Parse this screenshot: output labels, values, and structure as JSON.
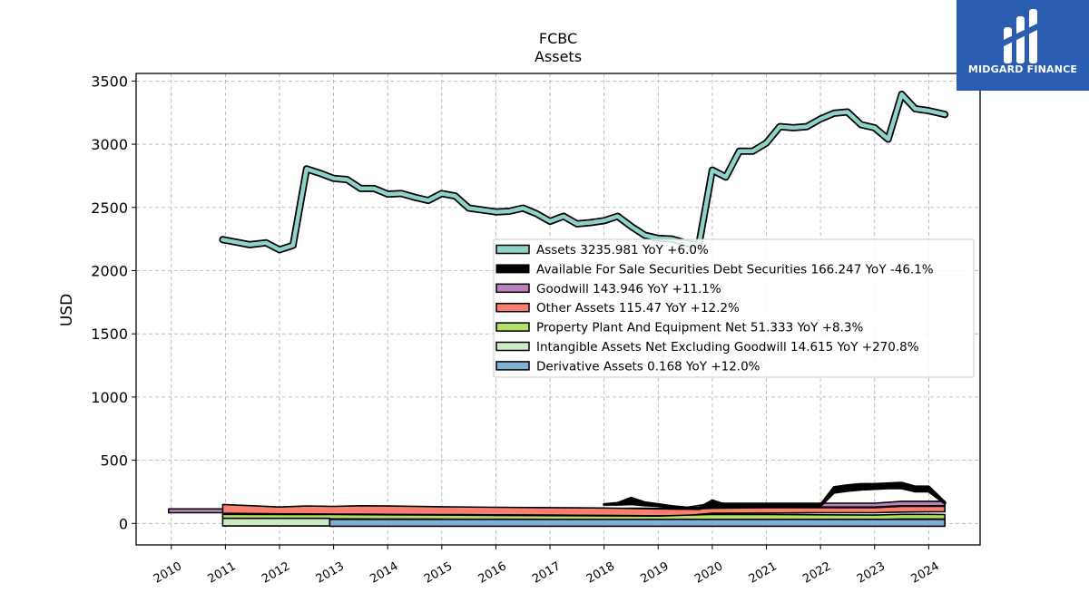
{
  "logo": {
    "text": "MIDGARD FINANCE"
  },
  "chart_data": {
    "type": "line",
    "title": "FCBC",
    "subtitle": "Assets",
    "ylabel": "USD",
    "xlabel": "",
    "ylim": [
      -170,
      3560
    ],
    "xlim": [
      2009.35,
      2024.95
    ],
    "yticks": [
      0,
      500,
      1000,
      1500,
      2000,
      2500,
      3000,
      3500
    ],
    "xticks": [
      "2010",
      "2011",
      "2012",
      "2013",
      "2014",
      "2015",
      "2016",
      "2017",
      "2018",
      "2019",
      "2020",
      "2021",
      "2022",
      "2023",
      "2024"
    ],
    "grid": true,
    "legend_position": "center-right",
    "series": [
      {
        "name": "Assets",
        "legend_label": "Assets  3235.981 YoY +6.0%",
        "color": "#8dd3c7",
        "style": "line",
        "x": [
          2010.95,
          2011.2,
          2011.45,
          2011.75,
          2012.0,
          2012.25,
          2012.5,
          2012.75,
          2013.0,
          2013.25,
          2013.5,
          2013.75,
          2014.0,
          2014.25,
          2014.5,
          2014.75,
          2015.0,
          2015.25,
          2015.5,
          2015.75,
          2016.0,
          2016.25,
          2016.5,
          2016.75,
          2017.0,
          2017.25,
          2017.5,
          2017.75,
          2018.0,
          2018.25,
          2018.5,
          2018.75,
          2019.0,
          2019.25,
          2019.5,
          2019.75,
          2020.0,
          2020.25,
          2020.5,
          2020.75,
          2021.0,
          2021.25,
          2021.5,
          2021.75,
          2022.0,
          2022.25,
          2022.5,
          2022.75,
          2023.0,
          2023.25,
          2023.5,
          2023.75,
          2024.0,
          2024.3
        ],
        "values": [
          2245,
          2225,
          2205,
          2220,
          2165,
          2200,
          2805,
          2770,
          2730,
          2720,
          2650,
          2650,
          2605,
          2610,
          2580,
          2555,
          2610,
          2590,
          2495,
          2480,
          2465,
          2470,
          2495,
          2450,
          2390,
          2430,
          2370,
          2380,
          2395,
          2430,
          2350,
          2280,
          2255,
          2250,
          2220,
          2200,
          2795,
          2740,
          2945,
          2945,
          3010,
          3140,
          3130,
          3140,
          3200,
          3245,
          3255,
          3155,
          3130,
          3040,
          3395,
          3280,
          3265,
          3236
        ]
      },
      {
        "name": "Available For Sale Securities Debt Securities",
        "legend_label": "Available For Sale Securities Debt Securities  166.247 YoY -46.1%",
        "color": "#000000",
        "style": "band",
        "x": [
          2018.0,
          2018.25,
          2018.5,
          2018.75,
          2019.0,
          2019.25,
          2019.5,
          2019.75,
          2020.0,
          2020.25,
          2020.5,
          2020.75,
          2021.0,
          2021.25,
          2021.5,
          2021.75,
          2022.0,
          2022.25,
          2022.5,
          2022.75,
          2023.0,
          2023.25,
          2023.5,
          2023.75,
          2024.0,
          2024.3
        ],
        "values": [
          150,
          160,
          200,
          165,
          150,
          135,
          125,
          120,
          180,
          145,
          145,
          145,
          145,
          145,
          145,
          145,
          145,
          285,
          300,
          310,
          310,
          315,
          320,
          290,
          290,
          166
        ],
        "lower": [
          150,
          150,
          155,
          145,
          140,
          130,
          120,
          115,
          145,
          140,
          140,
          140,
          140,
          140,
          140,
          140,
          140,
          245,
          260,
          270,
          275,
          280,
          280,
          255,
          255,
          160
        ]
      },
      {
        "name": "Goodwill",
        "legend_label": "Goodwill  143.946 YoY +11.1%",
        "color": "#bc80bd",
        "style": "band",
        "x": [
          2009.95,
          2011.0,
          2012.0,
          2013.0,
          2014.0,
          2015.0,
          2016.0,
          2017.0,
          2018.0,
          2018.5,
          2019.0,
          2019.5,
          2020.0,
          2021.0,
          2022.0,
          2023.0,
          2023.5,
          2024.0,
          2024.3
        ],
        "values": [
          115,
          115,
          115,
          115,
          115,
          115,
          115,
          115,
          115,
          120,
          120,
          125,
          160,
          160,
          160,
          160,
          175,
          175,
          175
        ],
        "lower": [
          85,
          85,
          85,
          85,
          85,
          85,
          85,
          85,
          85,
          90,
          90,
          95,
          130,
          130,
          130,
          130,
          140,
          140,
          140
        ]
      },
      {
        "name": "Other Assets",
        "legend_label": "Other Assets  115.47 YoY +12.2%",
        "color": "#fb8072",
        "style": "band",
        "x": [
          2010.95,
          2011.5,
          2012.0,
          2012.5,
          2013.0,
          2013.5,
          2014.0,
          2015.0,
          2016.0,
          2017.0,
          2018.0,
          2018.5,
          2019.0,
          2019.5,
          2020.0,
          2021.0,
          2022.0,
          2023.0,
          2023.5,
          2024.0,
          2024.3
        ],
        "values": [
          150,
          140,
          130,
          138,
          135,
          140,
          138,
          132,
          128,
          125,
          122,
          118,
          115,
          112,
          120,
          125,
          125,
          125,
          135,
          135,
          135
        ],
        "lower": [
          80,
          78,
          76,
          75,
          74,
          73,
          72,
          70,
          68,
          66,
          64,
          62,
          60,
          62,
          80,
          82,
          85,
          85,
          90,
          92,
          92
        ]
      },
      {
        "name": "Property Plant And Equipment Net",
        "legend_label": "Property Plant And Equipment Net  51.333 YoY +8.3%",
        "color": "#b3de69",
        "style": "band",
        "x": [
          2010.95,
          2012.0,
          2013.0,
          2014.0,
          2015.0,
          2016.0,
          2017.0,
          2018.0,
          2019.0,
          2020.0,
          2021.0,
          2022.0,
          2023.0,
          2023.5,
          2024.0,
          2024.3
        ],
        "values": [
          72,
          70,
          70,
          68,
          66,
          64,
          62,
          60,
          58,
          72,
          70,
          68,
          66,
          72,
          72,
          70
        ],
        "lower": [
          38,
          37,
          36,
          35,
          34,
          33,
          32,
          31,
          30,
          30,
          30,
          30,
          30,
          35,
          35,
          35
        ]
      },
      {
        "name": "Intangible Assets Net Excluding Goodwill",
        "legend_label": "Intangible Assets Net Excluding Goodwill  14.615 YoY +270.8%",
        "color": "#ccebc5",
        "style": "band",
        "x": [
          2010.95,
          2012.93
        ],
        "values": [
          40,
          40
        ],
        "lower": [
          -20,
          -20
        ]
      },
      {
        "name": "Derivative Assets",
        "legend_label": "Derivative Assets  0.168 YoY +12.0%",
        "color": "#80b1d3",
        "style": "band",
        "x": [
          2012.93,
          2024.3
        ],
        "values": [
          32,
          32
        ],
        "lower": [
          -22,
          -22
        ]
      }
    ]
  }
}
